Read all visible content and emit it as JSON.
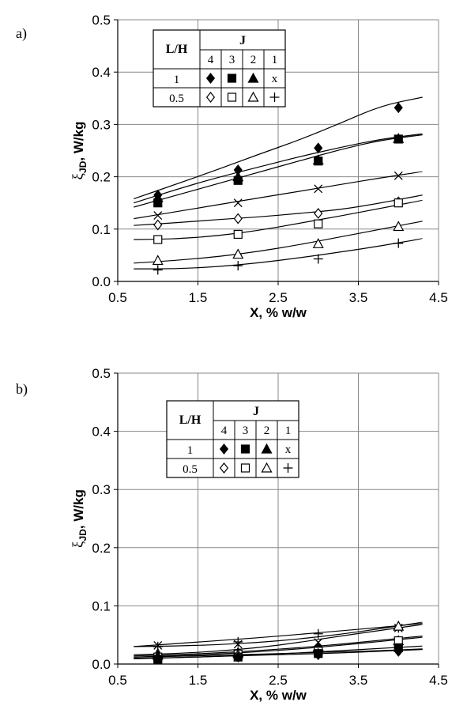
{
  "chart_data": [
    {
      "panel_label": "a)",
      "type": "line",
      "xlabel": "X, % w/w",
      "ylabel_main": "ξ",
      "ylabel_sub": "JD",
      "ylabel_rest": ", W/kg",
      "xlim": [
        0.5,
        4.5
      ],
      "ylim": [
        0.0,
        0.5
      ],
      "xticks": [
        "0.5",
        "1.5",
        "2.5",
        "3.5",
        "4.5"
      ],
      "yticks": [
        "0.0",
        "0.1",
        "0.2",
        "0.3",
        "0.4",
        "0.5"
      ],
      "grid": true,
      "legend": {
        "col_header": "L/H",
        "group_header": "J",
        "j_values": [
          "4",
          "3",
          "2",
          "1"
        ],
        "rows": [
          {
            "label": "1",
            "markers": [
              "diamond-filled",
              "square-filled",
              "triangle-filled",
              "x"
            ],
            "x_text": "x"
          },
          {
            "label": "0.5",
            "markers": [
              "diamond-open",
              "square-open",
              "triangle-open",
              "plus"
            ]
          }
        ]
      },
      "series": [
        {
          "marker": "diamond-filled",
          "x": [
            1,
            2,
            3,
            4
          ],
          "y": [
            0.165,
            0.213,
            0.255,
            0.332
          ],
          "fit": [
            0.158,
            0.185,
            0.213,
            0.242,
            0.27,
            0.302,
            0.336,
            0.352
          ]
        },
        {
          "marker": "square-filled",
          "x": [
            1,
            2,
            3,
            4
          ],
          "y": [
            0.15,
            0.193,
            0.23,
            0.272
          ],
          "fit": [
            0.142,
            0.164,
            0.186,
            0.208,
            0.23,
            0.252,
            0.27,
            0.28
          ]
        },
        {
          "marker": "triangle-filled",
          "x": [
            1,
            2,
            3,
            4
          ],
          "y": [
            0.16,
            0.2,
            0.232,
            0.273
          ],
          "fit": [
            0.15,
            0.175,
            0.198,
            0.218,
            0.238,
            0.256,
            0.272,
            0.282
          ]
        },
        {
          "marker": "x",
          "x": [
            1,
            2,
            3,
            4
          ],
          "y": [
            0.126,
            0.15,
            0.177,
            0.202
          ],
          "fit": [
            0.12,
            0.133,
            0.146,
            0.159,
            0.172,
            0.185,
            0.198,
            0.21
          ]
        },
        {
          "marker": "diamond-open",
          "x": [
            1,
            2,
            3,
            4
          ],
          "y": [
            0.108,
            0.12,
            0.13,
            0.152
          ],
          "fit": [
            0.107,
            0.112,
            0.118,
            0.123,
            0.13,
            0.137,
            0.15,
            0.165
          ]
        },
        {
          "marker": "square-open",
          "x": [
            1,
            2,
            3,
            4
          ],
          "y": [
            0.08,
            0.09,
            0.11,
            0.15
          ],
          "fit": [
            0.08,
            0.081,
            0.087,
            0.097,
            0.111,
            0.125,
            0.14,
            0.155
          ]
        },
        {
          "marker": "triangle-open",
          "x": [
            1,
            2,
            3,
            4
          ],
          "y": [
            0.04,
            0.052,
            0.072,
            0.105
          ],
          "fit": [
            0.035,
            0.04,
            0.047,
            0.057,
            0.07,
            0.085,
            0.1,
            0.115
          ]
        },
        {
          "marker": "plus",
          "x": [
            1,
            2,
            3,
            4
          ],
          "y": [
            0.022,
            0.03,
            0.043,
            0.073
          ],
          "fit": [
            0.024,
            0.024,
            0.028,
            0.035,
            0.045,
            0.056,
            0.068,
            0.082
          ]
        }
      ]
    },
    {
      "panel_label": "b)",
      "type": "line",
      "xlabel": "X, % w/w",
      "ylabel_main": "ξ",
      "ylabel_sub": "JD",
      "ylabel_rest": ", W/kg",
      "xlim": [
        0.5,
        4.5
      ],
      "ylim": [
        0.0,
        0.5
      ],
      "xticks": [
        "0.5",
        "1.5",
        "2.5",
        "3.5",
        "4.5"
      ],
      "yticks": [
        "0.0",
        "0.1",
        "0.2",
        "0.3",
        "0.4",
        "0.5"
      ],
      "grid": true,
      "legend": {
        "col_header": "L/H",
        "group_header": "J",
        "j_values": [
          "4",
          "3",
          "2",
          "1"
        ],
        "rows": [
          {
            "label": "1",
            "markers": [
              "diamond-filled",
              "square-filled",
              "triangle-filled",
              "x"
            ],
            "x_text": "x"
          },
          {
            "label": "0.5",
            "markers": [
              "diamond-open",
              "square-open",
              "triangle-open",
              "plus"
            ]
          }
        ]
      },
      "series": [
        {
          "marker": "plus",
          "x": [
            1,
            2,
            3,
            4
          ],
          "y": [
            0.03,
            0.038,
            0.052,
            0.062
          ],
          "fit": [
            0.03,
            0.035,
            0.04,
            0.045,
            0.051,
            0.057,
            0.063,
            0.07
          ]
        },
        {
          "marker": "x",
          "x": [
            1,
            2,
            3,
            4
          ],
          "y": [
            0.032,
            0.034,
            0.037,
            0.062
          ],
          "fit": [
            0.03,
            0.031,
            0.033,
            0.037,
            0.043,
            0.051,
            0.061,
            0.072
          ]
        },
        {
          "marker": "triangle-open",
          "x": [
            1,
            2,
            3,
            4
          ],
          "y": [
            0.018,
            0.02,
            0.03,
            0.065
          ],
          "fit": [
            0.016,
            0.018,
            0.022,
            0.028,
            0.037,
            0.048,
            0.058,
            0.068
          ]
        },
        {
          "marker": "triangle-filled",
          "x": [
            1,
            2,
            3,
            4
          ],
          "y": [
            0.015,
            0.018,
            0.028,
            0.04
          ],
          "fit": [
            0.014,
            0.016,
            0.019,
            0.023,
            0.028,
            0.034,
            0.041,
            0.048
          ]
        },
        {
          "marker": "square-open",
          "x": [
            1,
            2,
            3,
            4
          ],
          "y": [
            0.012,
            0.017,
            0.022,
            0.04
          ],
          "fit": [
            0.012,
            0.014,
            0.017,
            0.021,
            0.026,
            0.032,
            0.039,
            0.046
          ]
        },
        {
          "marker": "square-filled",
          "x": [
            1,
            2,
            3,
            4
          ],
          "y": [
            0.008,
            0.012,
            0.018,
            0.028
          ],
          "fit": [
            0.009,
            0.011,
            0.013,
            0.016,
            0.019,
            0.023,
            0.027,
            0.031
          ]
        },
        {
          "marker": "diamond-open",
          "x": [
            1,
            2,
            3,
            4
          ],
          "y": [
            0.012,
            0.015,
            0.018,
            0.022
          ],
          "fit": [
            0.012,
            0.013,
            0.015,
            0.017,
            0.019,
            0.021,
            0.023,
            0.026
          ]
        },
        {
          "marker": "diamond-filled",
          "x": [
            1,
            2,
            3,
            4
          ],
          "y": [
            0.01,
            0.012,
            0.016,
            0.022
          ],
          "fit": [
            0.01,
            0.011,
            0.013,
            0.015,
            0.017,
            0.019,
            0.022,
            0.025
          ]
        }
      ]
    }
  ]
}
